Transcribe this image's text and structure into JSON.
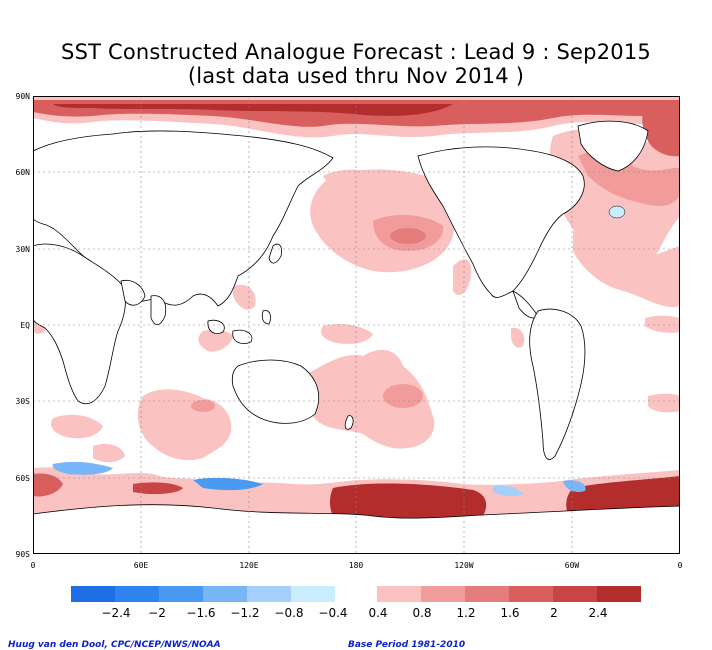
{
  "title": {
    "line1": "SST Constructed Analogue Forecast : Lead 9 : Sep2015",
    "line2": "(last data used thru Nov 2014 )"
  },
  "axes": {
    "y_labels": [
      "90N",
      "60N",
      "30N",
      "EQ",
      "30S",
      "60S",
      "90S"
    ],
    "x_labels": [
      "0",
      "60E",
      "120E",
      "180",
      "120W",
      "60W",
      "0"
    ]
  },
  "legend": {
    "negative_colors": [
      "#1e6fe6",
      "#2e84ee",
      "#4b9af2",
      "#78b6f7",
      "#a3d0fb",
      "#c9ecfe"
    ],
    "positive_colors": [
      "#fbc2c2",
      "#f29b9b",
      "#e67d7d",
      "#d95e5e",
      "#c94545",
      "#b32d2d"
    ],
    "labels": [
      "−2.4",
      "−2",
      "−1.6",
      "−1.2",
      "−0.8",
      "−0.4",
      "0.4",
      "0.8",
      "1.2",
      "1.6",
      "2",
      "2.4"
    ]
  },
  "credits": {
    "left": "Huug van den Dool, CPC/NCEP/NWS/NOAA",
    "right": "Base Period 1981-2010"
  },
  "colors": {
    "land_outline": "#000000",
    "grid": "#888888",
    "frame": "#000000"
  }
}
